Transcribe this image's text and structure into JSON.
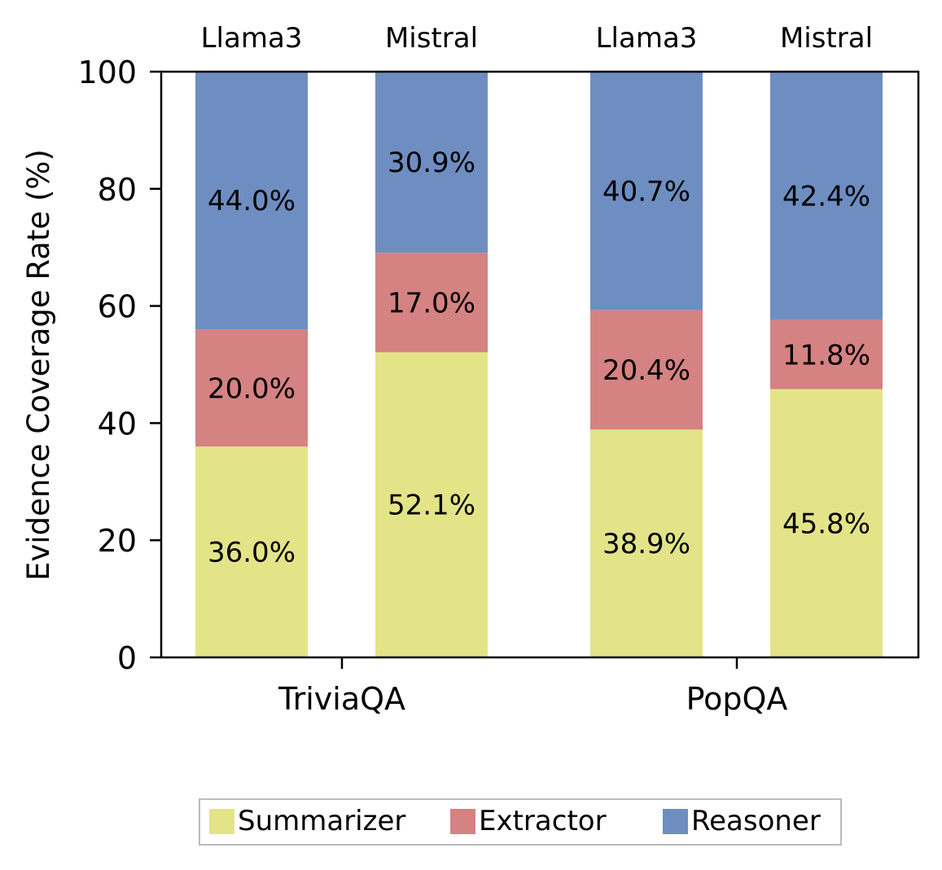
{
  "chart_data": {
    "type": "bar",
    "stacked": true,
    "ylabel": "Evidence Coverage Rate (%)",
    "xlabel": "",
    "ylim": [
      0,
      100
    ],
    "yticks": [
      0,
      20,
      40,
      60,
      80,
      100
    ],
    "grid": false,
    "legend_position": "bottom-center",
    "groups": [
      {
        "label": "TriviaQA",
        "bars": [
          {
            "label": "Llama3",
            "values": [
              36.0,
              20.0,
              44.0
            ],
            "data_labels": [
              "36.0%",
              "20.0%",
              "44.0%"
            ]
          },
          {
            "label": "Mistral",
            "values": [
              52.1,
              17.0,
              30.9
            ],
            "data_labels": [
              "52.1%",
              "17.0%",
              "30.9%"
            ]
          }
        ]
      },
      {
        "label": "PopQA",
        "bars": [
          {
            "label": "Llama3",
            "values": [
              38.9,
              20.4,
              40.7
            ],
            "data_labels": [
              "38.9%",
              "20.4%",
              "40.7%"
            ]
          },
          {
            "label": "Mistral",
            "values": [
              45.8,
              11.8,
              42.4
            ],
            "data_labels": [
              "45.8%",
              "11.8%",
              "42.4%"
            ]
          }
        ]
      }
    ],
    "series": [
      {
        "name": "Summarizer",
        "color": "#e3e487"
      },
      {
        "name": "Extractor",
        "color": "#d58282"
      },
      {
        "name": "Reasoner",
        "color": "#6e8dc1"
      }
    ]
  }
}
